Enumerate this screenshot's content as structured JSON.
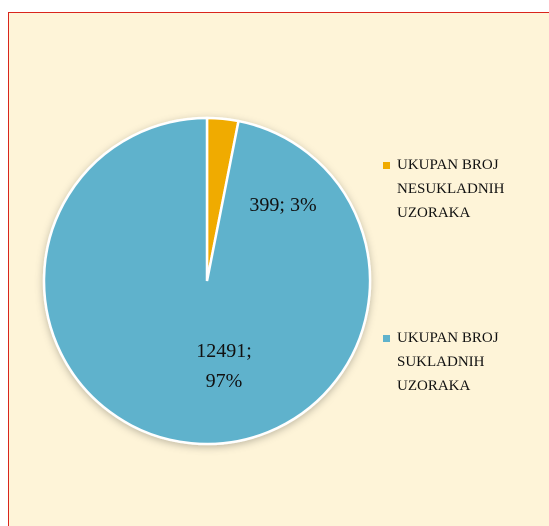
{
  "chart_data": {
    "type": "pie",
    "categories": [
      "UKUPAN BROJ NESUKLADNIH UZORAKA",
      "UKUPAN BROJ SUKLADNIH UZORAKA"
    ],
    "values": [
      399,
      12491
    ],
    "value_labels": [
      "399; 3%",
      "12491; 97%"
    ],
    "colors": [
      "#f0ab00",
      "#5fb2cc"
    ],
    "legend": "right"
  }
}
